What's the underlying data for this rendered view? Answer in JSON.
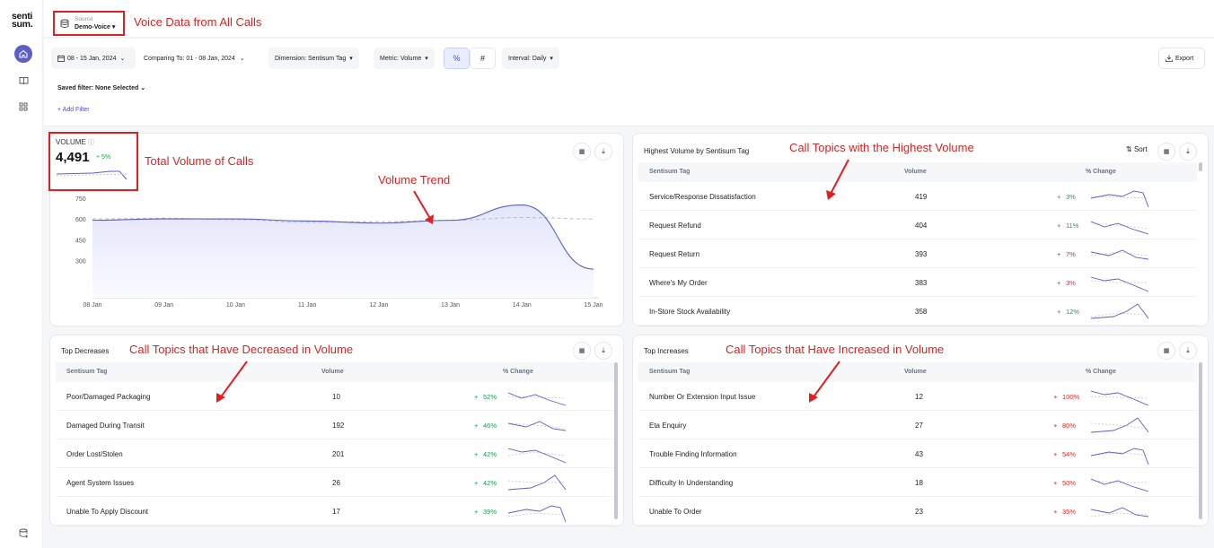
{
  "app": {
    "logo_line1": "senti",
    "logo_line2": "sum."
  },
  "colors": {
    "accent": "#5b5fc7",
    "annotation": "#e02020",
    "positive": "#16a34a",
    "negative": "#dc2626"
  },
  "source": {
    "label": "Source",
    "value": "Demo-Voice ▾"
  },
  "annotations": {
    "voice": "Voice Data from All Calls",
    "total": "Total Volume of Calls",
    "trend": "Volume Trend",
    "highest": "Call Topics with the Highest Volume",
    "decreased": "Call Topics that Have Decreased in Volume",
    "increased": "Call Topics that Have Increased in Volume"
  },
  "toolbar": {
    "date": "08 - 15 Jan, 2024",
    "comparing": "Comparing To: 01 - 08 Jan, 2024",
    "dimension": "Dimension: Sentisum Tag",
    "metric": "Metric: Volume",
    "percent": "%",
    "hash": "#",
    "interval": "Interval: Daily",
    "export": "Export",
    "saved_filter": "Saved filter: None Selected",
    "add_filter": "+ Add Filter"
  },
  "volume_card": {
    "label": "VOLUME",
    "value": "4,491",
    "change": "+ 5%"
  },
  "chart_data": {
    "type": "line",
    "x": [
      "08 Jan",
      "09 Jan",
      "10 Jan",
      "11 Jan",
      "12 Jan",
      "13 Jan",
      "14 Jan",
      "15 Jan"
    ],
    "y_ticks": [
      "750",
      "600",
      "450",
      "300"
    ],
    "ylim": [
      150,
      800
    ],
    "series": [
      {
        "values": [
          590,
          600,
          600,
          585,
          570,
          590,
          700,
          240
        ]
      },
      {
        "values": [
          600,
          605,
          595,
          575,
          580,
          590,
          610,
          600
        ]
      }
    ]
  },
  "highest": {
    "title": "Highest Volume by Sentisum Tag",
    "sort": "Sort",
    "headers": [
      "Sentisum Tag",
      "Volume",
      "% Change"
    ],
    "rows": [
      {
        "tag": "Service/Response Dissatisfaction",
        "volume": "419",
        "change": "3%",
        "dir": "up"
      },
      {
        "tag": "Request Refund",
        "volume": "404",
        "change": "11%",
        "dir": "up"
      },
      {
        "tag": "Request Return",
        "volume": "393",
        "change": "7%",
        "dir": "down"
      },
      {
        "tag": "Where's My Order",
        "volume": "383",
        "change": "3%",
        "dir": "down"
      },
      {
        "tag": "In-Store Stock Availability",
        "volume": "358",
        "change": "12%",
        "dir": "up"
      }
    ]
  },
  "decreases": {
    "title": "Top Decreases",
    "headers": [
      "Sentisum Tag",
      "Volume",
      "% Change"
    ],
    "rows": [
      {
        "tag": "Poor/Damaged Packaging",
        "volume": "10",
        "change": "52%",
        "dir": "up"
      },
      {
        "tag": "Damaged During Transit",
        "volume": "192",
        "change": "46%",
        "dir": "up"
      },
      {
        "tag": "Order Lost/Stolen",
        "volume": "201",
        "change": "42%",
        "dir": "up"
      },
      {
        "tag": "Agent System Issues",
        "volume": "26",
        "change": "42%",
        "dir": "up"
      },
      {
        "tag": "Unable To Apply Discount",
        "volume": "17",
        "change": "39%",
        "dir": "up"
      }
    ]
  },
  "increases": {
    "title": "Top Increases",
    "headers": [
      "Sentisum Tag",
      "Volume",
      "% Change"
    ],
    "rows": [
      {
        "tag": "Number Or Extension Input Issue",
        "volume": "12",
        "change": "100%",
        "dir": "down"
      },
      {
        "tag": "Eta Enquiry",
        "volume": "27",
        "change": "80%",
        "dir": "down"
      },
      {
        "tag": "Trouble Finding Information",
        "volume": "43",
        "change": "54%",
        "dir": "down"
      },
      {
        "tag": "Difficulty In Understanding",
        "volume": "18",
        "change": "50%",
        "dir": "down"
      },
      {
        "tag": "Unable To Order",
        "volume": "23",
        "change": "35%",
        "dir": "down"
      }
    ]
  }
}
